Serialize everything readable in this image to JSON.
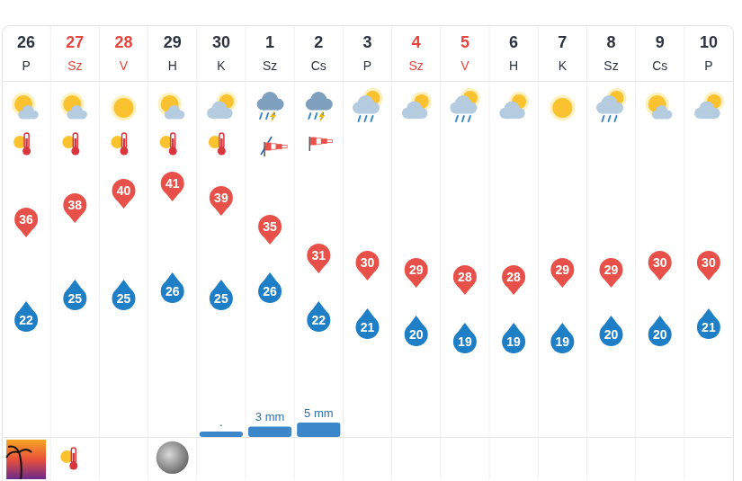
{
  "header": {
    "weekdays": [
      "P",
      "Sz",
      "V",
      "H",
      "K",
      "Sz",
      "Cs",
      "P",
      "Sz",
      "V",
      "H",
      "K",
      "Sz",
      "Cs",
      "P"
    ],
    "colors": [
      "#2b3240",
      "#e5453d",
      "#e5453d",
      "#2b3240",
      "#2b3240",
      "#2b3240",
      "#2b3240",
      "#2b3240",
      "#e5453d",
      "#e5453d",
      "#2b3240",
      "#2b3240",
      "#2b3240",
      "#2b3240",
      "#2b3240"
    ]
  },
  "chart_data": {
    "type": "line",
    "categories": [
      "26",
      "27",
      "28",
      "29",
      "30",
      "1",
      "2",
      "3",
      "4",
      "5",
      "6",
      "7",
      "8",
      "9",
      "10"
    ],
    "series": [
      {
        "color": "#e8514a",
        "marker": "pin",
        "values": [
          36,
          38,
          40,
          41,
          39,
          35,
          31,
          30,
          29,
          28,
          28,
          29,
          29,
          30,
          30
        ]
      },
      {
        "color": "#1f7fc6",
        "marker": "drop",
        "values": [
          22,
          25,
          25,
          26,
          25,
          26,
          22,
          21,
          20,
          19,
          19,
          19,
          20,
          20,
          21
        ]
      }
    ],
    "ylim": [
      7,
      55
    ],
    "yticks": [],
    "grid": false,
    "tick_labels": false,
    "data_labels": true
  },
  "precipitation": {
    "color": "#3b87c9",
    "values": [
      null,
      null,
      null,
      null,
      0.5,
      3,
      5,
      null,
      null,
      null,
      null,
      null,
      null,
      null,
      null
    ],
    "value_labels": [
      null,
      null,
      null,
      null,
      ".",
      "3 mm",
      "5 mm",
      null,
      null,
      null,
      null,
      null,
      null,
      null,
      null
    ]
  }
}
